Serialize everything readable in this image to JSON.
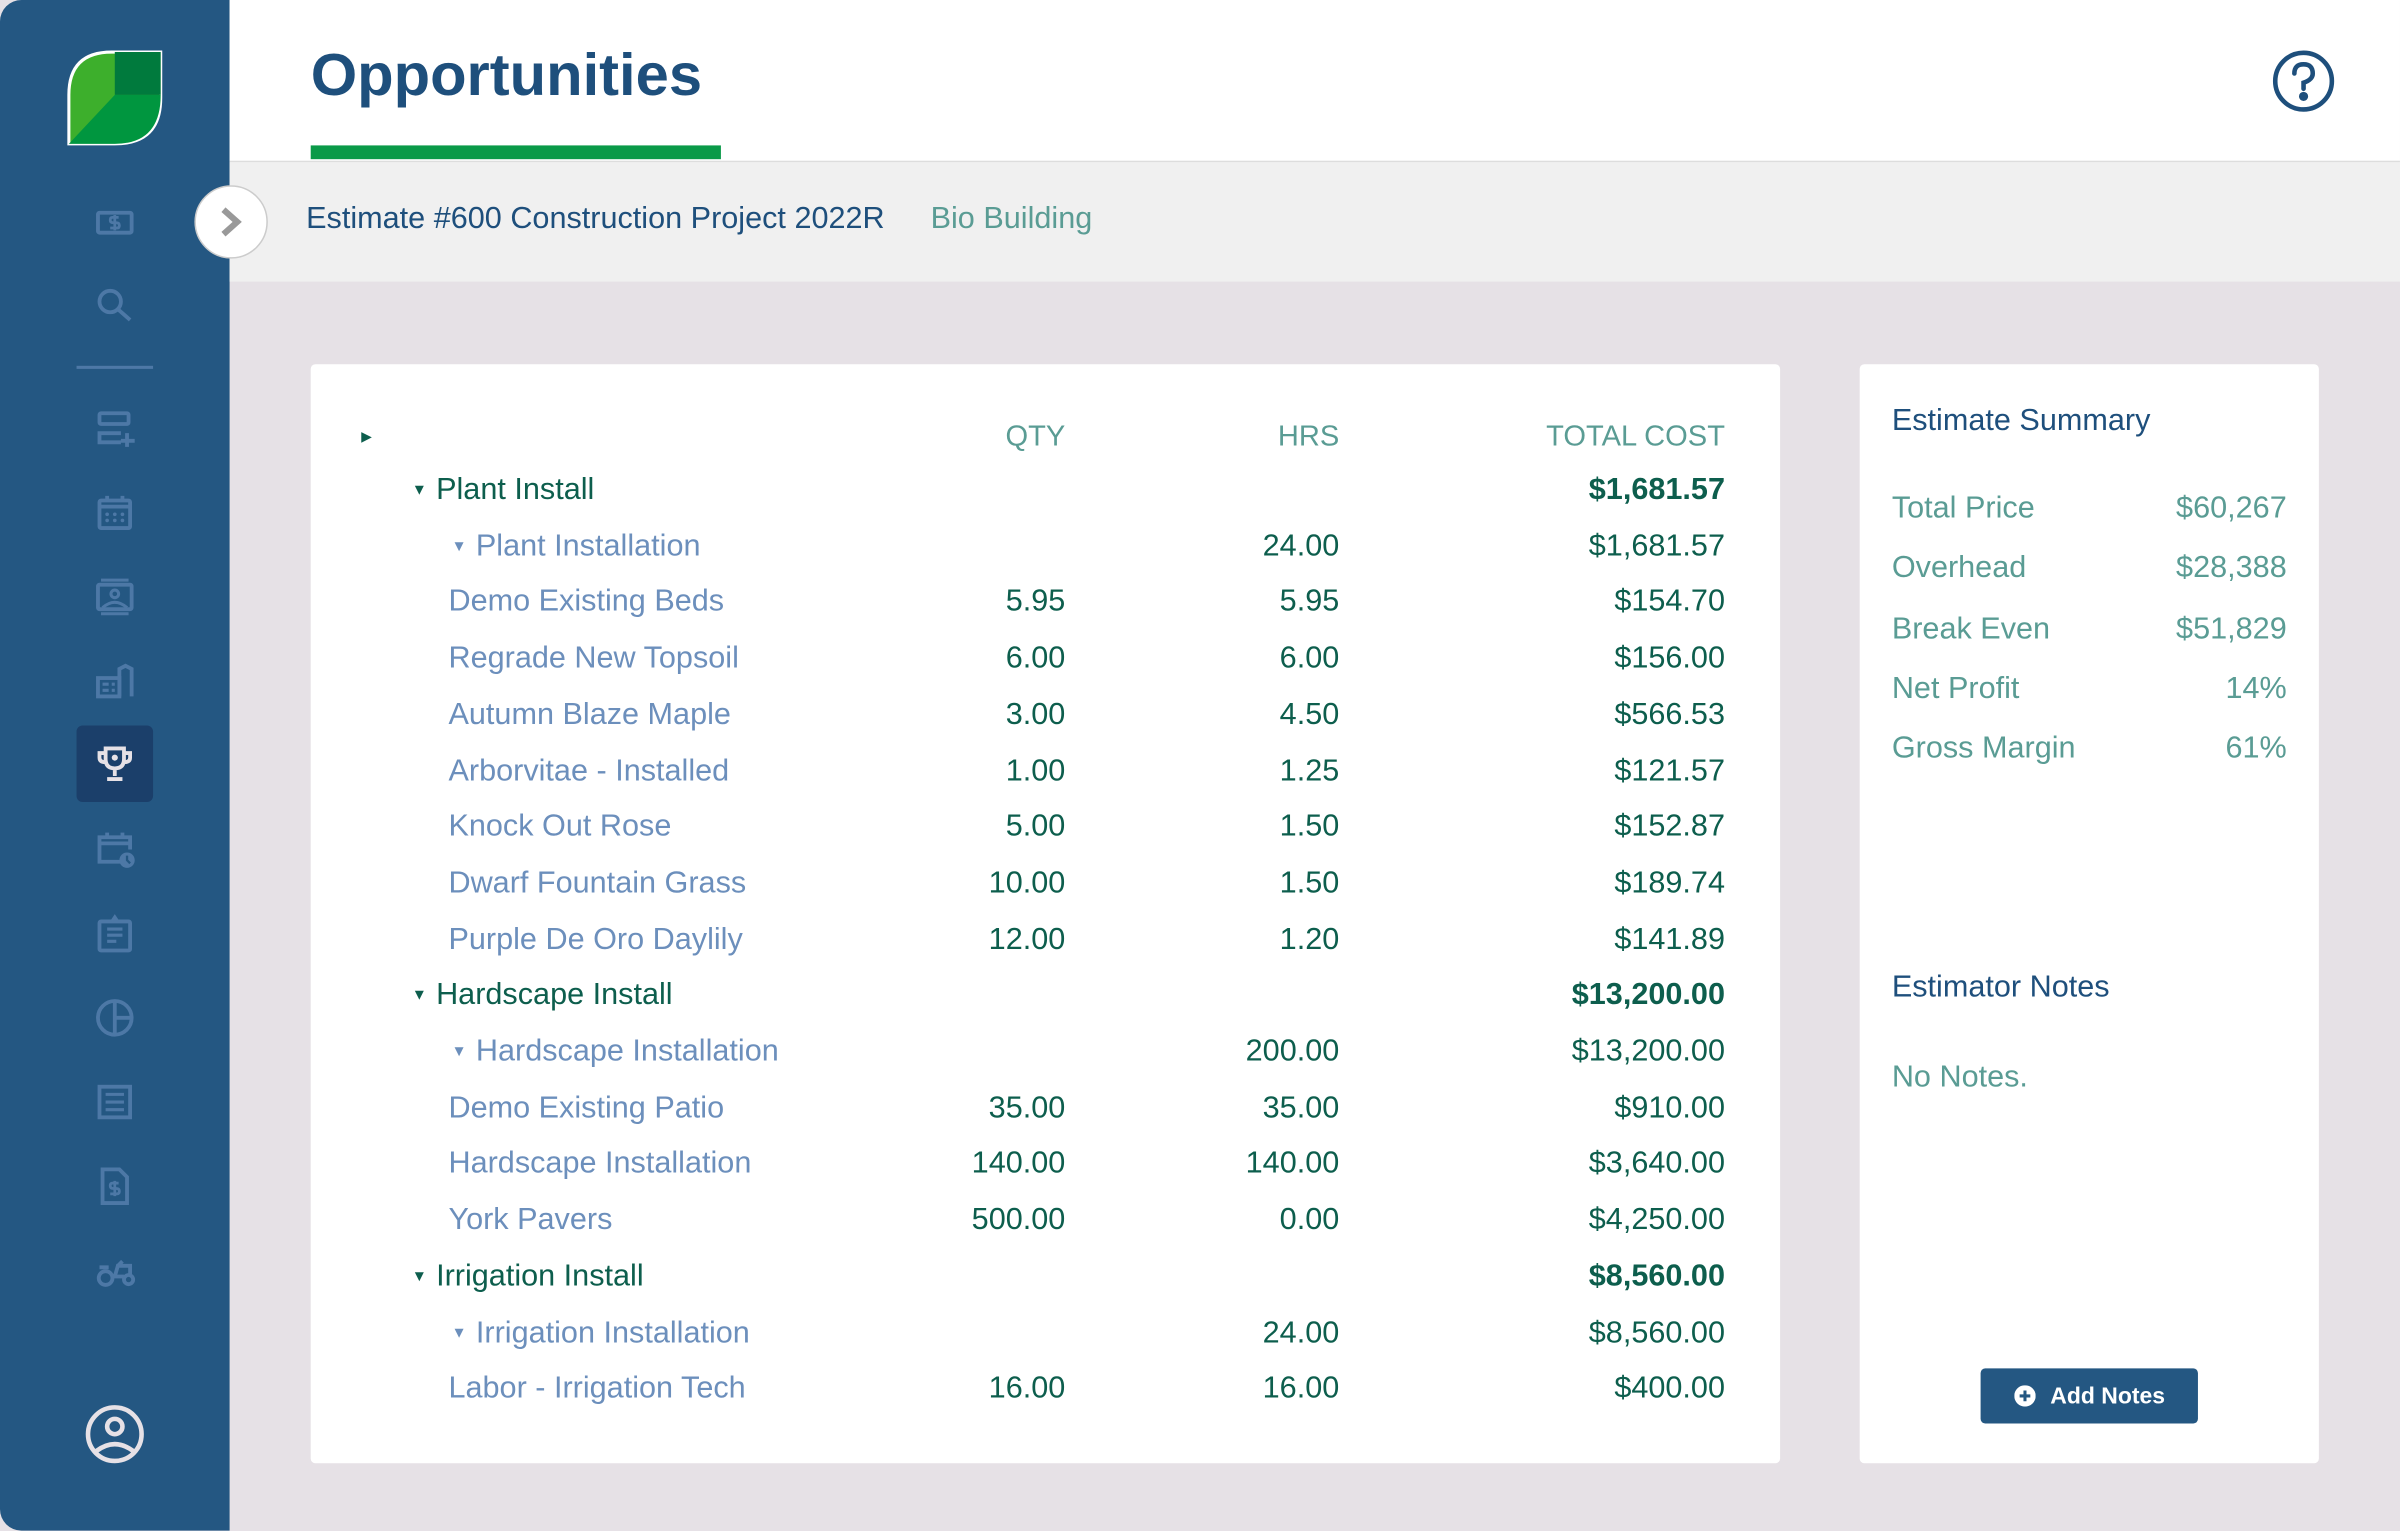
{
  "header": {
    "title": "Opportunities",
    "help_icon": "help-circle-icon"
  },
  "breadcrumb": {
    "estimate": "Estimate #600 Construction Project 2022R",
    "client": "Bio Building"
  },
  "colors": {
    "sidebar": "#245782",
    "accent_green": "#0a9a48",
    "title": "#1e4f7c",
    "teal_text": "#5a9c94"
  },
  "sidebar": {
    "items": [
      "billing-icon",
      "search-icon",
      "add-list-icon",
      "calendar-icon",
      "contacts-icon",
      "properties-icon",
      "opportunities-trophy-icon",
      "schedule-icon",
      "clipboard-icon",
      "reports-pie-icon",
      "receipt-icon",
      "invoice-icon",
      "equipment-tractor-icon"
    ],
    "active": "opportunities-trophy-icon",
    "profile": "user-profile-icon"
  },
  "table": {
    "columns": {
      "qty": "QTY",
      "hrs": "HRS",
      "total_cost": "TOTAL COST"
    },
    "rows": [
      {
        "type": "group",
        "name": "Plant Install",
        "qty": "",
        "hrs": "",
        "cost": "$1,681.57"
      },
      {
        "type": "sub",
        "name": "Plant Installation",
        "qty": "",
        "hrs": "24.00",
        "cost": "$1,681.57"
      },
      {
        "type": "item",
        "name": "Demo Existing Beds",
        "qty": "5.95",
        "hrs": "5.95",
        "cost": "$154.70"
      },
      {
        "type": "item",
        "name": "Regrade New Topsoil",
        "qty": "6.00",
        "hrs": "6.00",
        "cost": "$156.00"
      },
      {
        "type": "item",
        "name": "Autumn Blaze Maple",
        "qty": "3.00",
        "hrs": "4.50",
        "cost": "$566.53"
      },
      {
        "type": "item",
        "name": "Arborvitae - Installed",
        "qty": "1.00",
        "hrs": "1.25",
        "cost": "$121.57"
      },
      {
        "type": "item",
        "name": "Knock Out Rose",
        "qty": "5.00",
        "hrs": "1.50",
        "cost": "$152.87"
      },
      {
        "type": "item",
        "name": "Dwarf Fountain Grass",
        "qty": "10.00",
        "hrs": "1.50",
        "cost": "$189.74"
      },
      {
        "type": "item",
        "name": "Purple De Oro Daylily",
        "qty": "12.00",
        "hrs": "1.20",
        "cost": "$141.89"
      },
      {
        "type": "group",
        "name": "Hardscape Install",
        "qty": "",
        "hrs": "",
        "cost": "$13,200.00"
      },
      {
        "type": "sub",
        "name": "Hardscape Installation",
        "qty": "",
        "hrs": "200.00",
        "cost": "$13,200.00"
      },
      {
        "type": "item",
        "name": "Demo Existing Patio",
        "qty": "35.00",
        "hrs": "35.00",
        "cost": "$910.00"
      },
      {
        "type": "item",
        "name": "Hardscape Installation",
        "qty": "140.00",
        "hrs": "140.00",
        "cost": "$3,640.00"
      },
      {
        "type": "item",
        "name": "York Pavers",
        "qty": "500.00",
        "hrs": "0.00",
        "cost": "$4,250.00"
      },
      {
        "type": "group",
        "name": "Irrigation Install",
        "qty": "",
        "hrs": "",
        "cost": "$8,560.00"
      },
      {
        "type": "sub",
        "name": "Irrigation Installation",
        "qty": "",
        "hrs": "24.00",
        "cost": "$8,560.00"
      },
      {
        "type": "item",
        "name": "Labor - Irrigation Tech",
        "qty": "16.00",
        "hrs": "16.00",
        "cost": "$400.00"
      }
    ]
  },
  "summary": {
    "title": "Estimate Summary",
    "rows": [
      {
        "label": "Total Price",
        "value": "$60,267"
      },
      {
        "label": "Overhead",
        "value": "$28,388"
      },
      {
        "label": "Break Even",
        "value": "$51,829"
      },
      {
        "label": "Net Profit",
        "value": "14%"
      },
      {
        "label": "Gross Margin",
        "value": "61%"
      }
    ],
    "notes_title": "Estimator Notes",
    "notes_text": "No Notes.",
    "add_notes": "Add Notes"
  }
}
